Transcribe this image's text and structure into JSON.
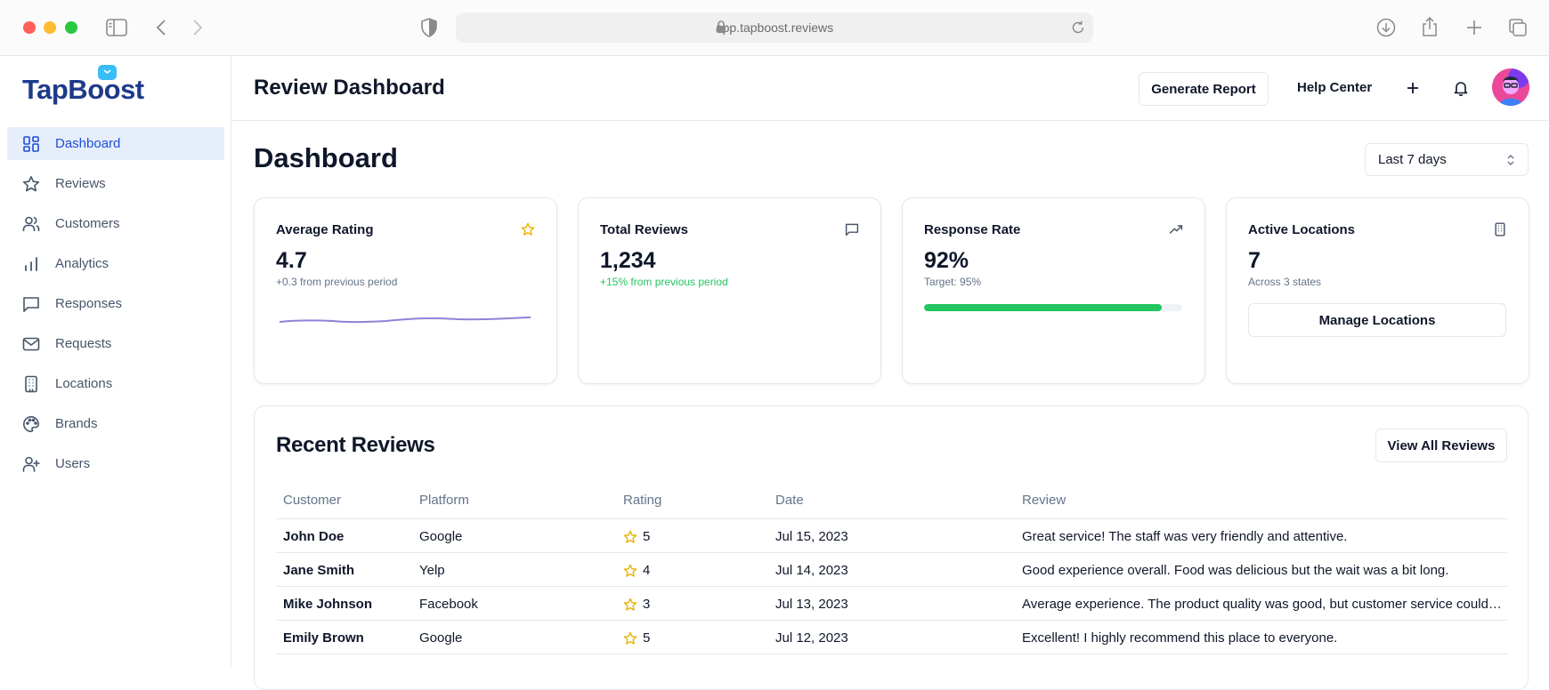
{
  "browser": {
    "url": "app.tapboost.reviews"
  },
  "brand": {
    "name": "TapBoost"
  },
  "sidebar": {
    "items": [
      {
        "label": "Dashboard",
        "icon": "dashboard-icon",
        "active": true
      },
      {
        "label": "Reviews",
        "icon": "star-icon"
      },
      {
        "label": "Customers",
        "icon": "users-icon"
      },
      {
        "label": "Analytics",
        "icon": "bar-chart-icon"
      },
      {
        "label": "Responses",
        "icon": "message-icon"
      },
      {
        "label": "Requests",
        "icon": "mail-icon"
      },
      {
        "label": "Locations",
        "icon": "building-icon"
      },
      {
        "label": "Brands",
        "icon": "palette-icon"
      },
      {
        "label": "Users",
        "icon": "user-plus-icon"
      }
    ]
  },
  "header": {
    "title": "Review Dashboard",
    "generate_report": "Generate Report",
    "help_center": "Help Center",
    "add_icon": "plus-icon",
    "bell_icon": "bell-icon"
  },
  "main": {
    "title": "Dashboard",
    "date_range": "Last 7 days"
  },
  "cards": {
    "rating": {
      "title": "Average Rating",
      "value": "4.7",
      "sub": "+0.3 from previous period",
      "icon": "star-icon"
    },
    "total": {
      "title": "Total Reviews",
      "value": "1,234",
      "sub": "+15% from previous period",
      "icon": "message-icon"
    },
    "response": {
      "title": "Response Rate",
      "value": "92%",
      "sub": "Target: 95%",
      "progress": 0.92,
      "icon": "trending-up-icon"
    },
    "locations": {
      "title": "Active Locations",
      "value": "7",
      "sub": "Across 3 states",
      "button": "Manage Locations",
      "icon": "building-icon"
    }
  },
  "reviews": {
    "title": "Recent Reviews",
    "view_all": "View All Reviews",
    "columns": [
      "Customer",
      "Platform",
      "Rating",
      "Date",
      "Review"
    ],
    "rows": [
      {
        "customer": "John Doe",
        "platform": "Google",
        "rating": "5",
        "date": "Jul 15, 2023",
        "review": "Great service! The staff was very friendly and attentive."
      },
      {
        "customer": "Jane Smith",
        "platform": "Yelp",
        "rating": "4",
        "date": "Jul 14, 2023",
        "review": "Good experience overall. Food was delicious but the wait was a bit long."
      },
      {
        "customer": "Mike Johnson",
        "platform": "Facebook",
        "rating": "3",
        "date": "Jul 13, 2023",
        "review": "Average experience. The product quality was good, but customer service could be improved."
      },
      {
        "customer": "Emily Brown",
        "platform": "Google",
        "rating": "5",
        "date": "Jul 12, 2023",
        "review": "Excellent! I highly recommend this place to everyone."
      }
    ]
  },
  "colors": {
    "accent": "#1d4ed8",
    "star": "#eab308",
    "success": "#22c55e"
  }
}
